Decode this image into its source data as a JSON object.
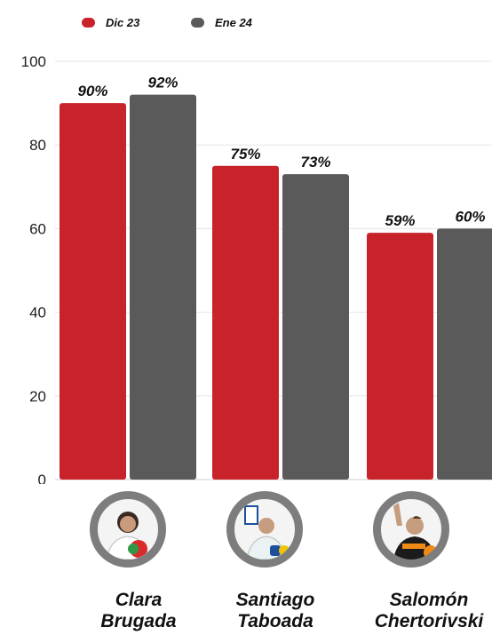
{
  "chart_data": {
    "type": "bar",
    "categories": [
      "Clara Brugada",
      "Santiago Taboada",
      "Salomón Chertorivski"
    ],
    "series": [
      {
        "name": "Dic 23",
        "values": [
          90,
          75,
          59
        ],
        "color": "#c8232b",
        "labels": [
          "90%",
          "75%",
          "59%"
        ]
      },
      {
        "name": "Ene 24",
        "values": [
          92,
          73,
          60
        ],
        "color": "#5a5a5a",
        "labels": [
          "92%",
          "73%",
          "60%"
        ]
      }
    ],
    "ylim": [
      0,
      100
    ],
    "yticks": [
      0,
      20,
      40,
      60,
      80,
      100
    ],
    "grid": true,
    "legend": "top-left"
  },
  "candidates": [
    {
      "name_line1": "Clara",
      "name_line2": "Brugada",
      "icon": "candidate-photo-icon"
    },
    {
      "name_line1": "Santiago",
      "name_line2": "Taboada",
      "icon": "candidate-photo-icon"
    },
    {
      "name_line1": "Salomón",
      "name_line2": "Chertorivski",
      "icon": "candidate-photo-icon"
    }
  ]
}
